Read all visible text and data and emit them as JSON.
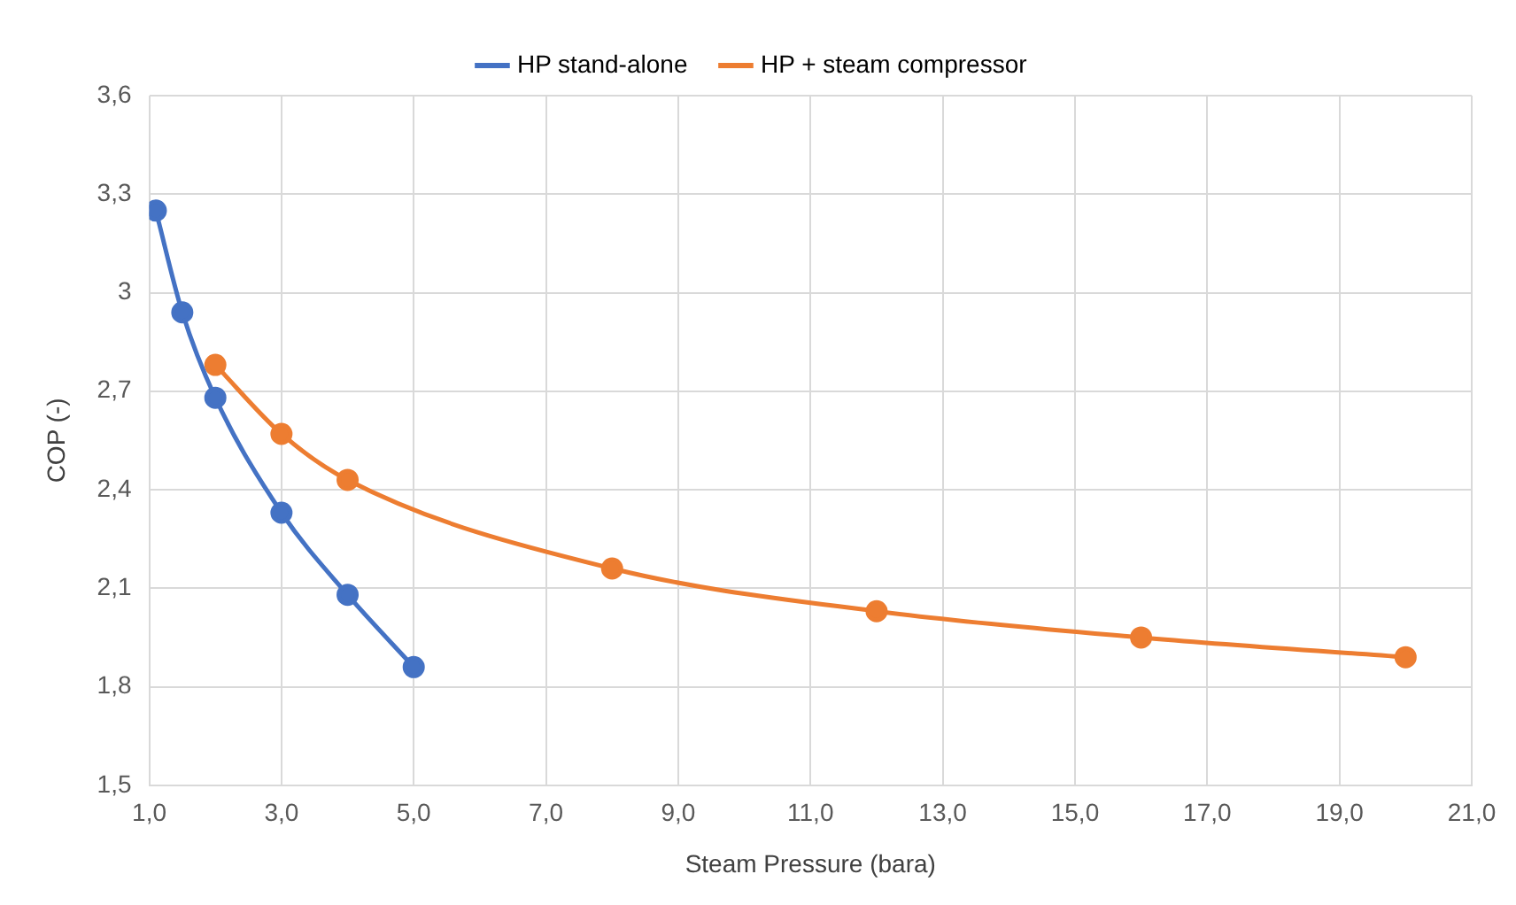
{
  "chart_data": {
    "type": "line",
    "xlabel": "Steam Pressure (bara)",
    "ylabel": "COP (-)",
    "series": [
      {
        "name": "HP stand-alone",
        "color": "#4472c4",
        "x": [
          1.1,
          1.5,
          2,
          3,
          4,
          5
        ],
        "values": [
          3.25,
          2.94,
          2.68,
          2.33,
          2.08,
          1.86
        ]
      },
      {
        "name": "HP + steam compressor",
        "color": "#ed7d31",
        "x": [
          2,
          3,
          4,
          8,
          12,
          16,
          20
        ],
        "values": [
          2.78,
          2.57,
          2.43,
          2.16,
          2.03,
          1.95,
          1.89
        ]
      }
    ],
    "xlim": [
      1,
      21
    ],
    "xticks": [
      {
        "value": 1,
        "label": "1,0"
      },
      {
        "value": 3,
        "label": "3,0"
      },
      {
        "value": 5,
        "label": "5,0"
      },
      {
        "value": 7,
        "label": "7,0"
      },
      {
        "value": 9,
        "label": "9,0"
      },
      {
        "value": 11,
        "label": "11,0"
      },
      {
        "value": 13,
        "label": "13,0"
      },
      {
        "value": 15,
        "label": "15,0"
      },
      {
        "value": 17,
        "label": "17,0"
      },
      {
        "value": 19,
        "label": "19,0"
      },
      {
        "value": 21,
        "label": "21,0"
      }
    ],
    "ylim": [
      1.5,
      3.6
    ],
    "yticks": [
      {
        "value": 1.5,
        "label": "1,5"
      },
      {
        "value": 1.8,
        "label": "1,8"
      },
      {
        "value": 2.1,
        "label": "2,1"
      },
      {
        "value": 2.4,
        "label": "2,4"
      },
      {
        "value": 2.7,
        "label": "2,7"
      },
      {
        "value": 3,
        "label": "3"
      },
      {
        "value": 3.3,
        "label": "3,3"
      },
      {
        "value": 3.6,
        "label": "3,6"
      }
    ],
    "grid": true,
    "legend": "top",
    "marker": "circle",
    "line_style": "solid"
  }
}
